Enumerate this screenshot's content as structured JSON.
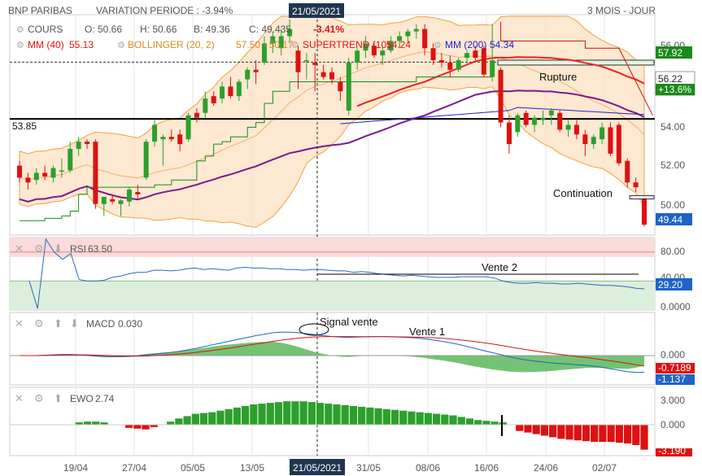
{
  "header": {
    "instrument": "BNP PARIBAS",
    "variation": "VARIATION PERIODE : -3.94%",
    "date": "21/05/2021",
    "period": "3 MOIS - JOUR"
  },
  "legend": {
    "cours_label": "COURS",
    "open": "O: 50.66",
    "high": "H: 50.66",
    "low": "B: 49.36",
    "close": "C: 49.435",
    "change": "-3.41%",
    "mm40": "MM (40)",
    "mm40_value": "55.13",
    "bollinger": "BOLLINGER (20, 2)",
    "bollinger_value": "57.50 - 50.17",
    "supertrend": "SUPERTREND (10)",
    "supertrend_value": "54.24",
    "mm200": "MM (200)",
    "mm200_value": "54.34"
  },
  "annotations": {
    "level": "53.85",
    "rupture": "Rupture",
    "continuation": "Continuation",
    "vente2": "Vente 2",
    "signal_vente": "Signal vente",
    "vente1": "Vente 1"
  },
  "price_badges": {
    "bb_upper": "57.92",
    "last_ref": "56.22",
    "last_pct": "+13.6%",
    "last": "49.44"
  },
  "price_ticks": [
    "56.00",
    "54.00",
    "52.00",
    "50.00"
  ],
  "rsi": {
    "label": "RSI",
    "value": "63.50",
    "ticks": [
      "80.00",
      "40.00",
      "0.0000"
    ],
    "badge": "29.20"
  },
  "macd": {
    "label": "MACD",
    "value": "0.030",
    "ticks": [
      "0.000"
    ],
    "badge1": "-0.7189",
    "badge2": "-1.137"
  },
  "ewo": {
    "label": "EWO",
    "value": "2.74",
    "ticks": [
      "3.000",
      "0.000"
    ],
    "badge": "-3.190"
  },
  "x_ticks": [
    "19/04",
    "27/04",
    "05/05",
    "13/05",
    "21/05/2021",
    "31/05",
    "08/06",
    "16/06",
    "24/06",
    "02/07"
  ],
  "colors": {
    "up": "#2ca02c",
    "down": "#dd1111",
    "bollinger": "#f4a23c",
    "mm40": "#ee2222",
    "mm200": "#2222cc",
    "supertrend": "#1a8a1a",
    "purple": "#7a1a8a"
  },
  "chart_data": [
    {
      "type": "candlestick",
      "title": "BNP PARIBAS",
      "ylim": [
        49.0,
        58.2
      ],
      "candles": [
        {
          "o": 51.9,
          "h": 52.1,
          "l": 51.2,
          "c": 51.4
        },
        {
          "o": 51.4,
          "h": 51.6,
          "l": 50.9,
          "c": 51.2
        },
        {
          "o": 51.3,
          "h": 51.8,
          "l": 51.1,
          "c": 51.6
        },
        {
          "o": 51.6,
          "h": 51.9,
          "l": 51.3,
          "c": 51.45
        },
        {
          "o": 51.4,
          "h": 51.9,
          "l": 51.2,
          "c": 51.8
        },
        {
          "o": 51.7,
          "h": 52.2,
          "l": 51.4,
          "c": 51.7
        },
        {
          "o": 51.7,
          "h": 52.9,
          "l": 51.6,
          "c": 52.6
        },
        {
          "o": 52.6,
          "h": 53.1,
          "l": 52.3,
          "c": 52.9
        },
        {
          "o": 52.9,
          "h": 53.0,
          "l": 52.6,
          "c": 52.8
        },
        {
          "o": 52.9,
          "h": 53.0,
          "l": 50.1,
          "c": 50.3
        },
        {
          "o": 50.3,
          "h": 50.6,
          "l": 49.8,
          "c": 50.6
        },
        {
          "o": 50.5,
          "h": 50.7,
          "l": 50.3,
          "c": 50.4
        },
        {
          "o": 50.3,
          "h": 50.5,
          "l": 49.8,
          "c": 50.45
        },
        {
          "o": 50.4,
          "h": 51.0,
          "l": 50.2,
          "c": 50.9
        },
        {
          "o": 50.8,
          "h": 51.1,
          "l": 50.5,
          "c": 50.7
        },
        {
          "o": 51.4,
          "h": 53.0,
          "l": 51.3,
          "c": 52.9
        },
        {
          "o": 52.9,
          "h": 53.8,
          "l": 52.7,
          "c": 53.6
        },
        {
          "o": 53.0,
          "h": 53.2,
          "l": 51.9,
          "c": 53.1
        },
        {
          "o": 53.1,
          "h": 53.4,
          "l": 52.9,
          "c": 53.0
        },
        {
          "o": 53.2,
          "h": 53.4,
          "l": 52.5,
          "c": 52.8
        },
        {
          "o": 53.0,
          "h": 54.1,
          "l": 52.9,
          "c": 54.0
        },
        {
          "o": 54.1,
          "h": 54.3,
          "l": 53.7,
          "c": 53.9
        },
        {
          "o": 54.1,
          "h": 55.0,
          "l": 53.9,
          "c": 54.7
        },
        {
          "o": 54.8,
          "h": 55.0,
          "l": 54.4,
          "c": 54.5
        },
        {
          "o": 54.7,
          "h": 55.4,
          "l": 54.5,
          "c": 55.2
        },
        {
          "o": 55.2,
          "h": 55.6,
          "l": 54.7,
          "c": 54.8
        },
        {
          "o": 54.8,
          "h": 55.5,
          "l": 54.6,
          "c": 55.4
        },
        {
          "o": 55.5,
          "h": 56.0,
          "l": 55.1,
          "c": 55.9
        },
        {
          "o": 55.9,
          "h": 56.3,
          "l": 55.3,
          "c": 55.8
        },
        {
          "o": 56.2,
          "h": 57.3,
          "l": 56.1,
          "c": 57.0
        },
        {
          "o": 57.0,
          "h": 57.5,
          "l": 56.6,
          "c": 57.3
        },
        {
          "o": 56.8,
          "h": 57.6,
          "l": 56.5,
          "c": 57.3
        },
        {
          "o": 57.3,
          "h": 58.0,
          "l": 57.0,
          "c": 57.6
        },
        {
          "o": 56.7,
          "h": 56.9,
          "l": 55.1,
          "c": 55.8
        },
        {
          "o": 56.3,
          "h": 56.6,
          "l": 55.5,
          "c": 56.3
        },
        {
          "o": 56.2,
          "h": 56.6,
          "l": 55.0,
          "c": 56.1
        },
        {
          "o": 55.8,
          "h": 56.1,
          "l": 55.5,
          "c": 55.6
        },
        {
          "o": 55.8,
          "h": 56.0,
          "l": 55.3,
          "c": 55.5
        },
        {
          "o": 55.4,
          "h": 55.6,
          "l": 54.6,
          "c": 55.0
        },
        {
          "o": 54.2,
          "h": 56.4,
          "l": 54.0,
          "c": 56.2
        },
        {
          "o": 56.2,
          "h": 56.8,
          "l": 55.9,
          "c": 56.7
        },
        {
          "o": 56.7,
          "h": 57.3,
          "l": 56.4,
          "c": 57.0
        },
        {
          "o": 56.9,
          "h": 57.1,
          "l": 56.4,
          "c": 56.5
        },
        {
          "o": 56.5,
          "h": 56.9,
          "l": 56.1,
          "c": 56.7
        },
        {
          "o": 56.7,
          "h": 57.3,
          "l": 56.6,
          "c": 57.1
        },
        {
          "o": 57.1,
          "h": 57.5,
          "l": 56.8,
          "c": 57.3
        },
        {
          "o": 57.3,
          "h": 57.6,
          "l": 57.0,
          "c": 57.5
        },
        {
          "o": 57.5,
          "h": 57.8,
          "l": 57.2,
          "c": 57.6
        },
        {
          "o": 57.6,
          "h": 57.8,
          "l": 56.5,
          "c": 56.8
        },
        {
          "o": 56.8,
          "h": 57.0,
          "l": 56.1,
          "c": 56.3
        },
        {
          "o": 56.3,
          "h": 56.6,
          "l": 56.0,
          "c": 56.2
        },
        {
          "o": 56.2,
          "h": 56.5,
          "l": 55.6,
          "c": 55.9
        },
        {
          "o": 55.9,
          "h": 56.4,
          "l": 55.8,
          "c": 56.3
        },
        {
          "o": 56.4,
          "h": 56.7,
          "l": 56.1,
          "c": 56.6
        },
        {
          "o": 56.7,
          "h": 56.9,
          "l": 56.3,
          "c": 56.4
        },
        {
          "o": 56.8,
          "h": 56.9,
          "l": 55.6,
          "c": 55.7
        },
        {
          "o": 55.6,
          "h": 57.8,
          "l": 55.4,
          "c": 56.3
        },
        {
          "o": 55.9,
          "h": 56.0,
          "l": 53.5,
          "c": 53.7
        },
        {
          "o": 53.7,
          "h": 54.0,
          "l": 52.4,
          "c": 52.8
        },
        {
          "o": 53.3,
          "h": 54.1,
          "l": 53.1,
          "c": 54.0
        },
        {
          "o": 54.1,
          "h": 54.2,
          "l": 53.5,
          "c": 53.6
        },
        {
          "o": 53.6,
          "h": 54.0,
          "l": 53.3,
          "c": 53.9
        },
        {
          "o": 53.8,
          "h": 54.2,
          "l": 53.6,
          "c": 53.9
        },
        {
          "o": 54.0,
          "h": 54.3,
          "l": 53.6,
          "c": 54.2
        },
        {
          "o": 54.1,
          "h": 54.2,
          "l": 53.3,
          "c": 53.4
        },
        {
          "o": 53.4,
          "h": 53.8,
          "l": 53.1,
          "c": 53.6
        },
        {
          "o": 53.6,
          "h": 53.8,
          "l": 53.0,
          "c": 53.2
        },
        {
          "o": 53.2,
          "h": 53.4,
          "l": 52.3,
          "c": 52.8
        },
        {
          "o": 52.8,
          "h": 53.2,
          "l": 52.6,
          "c": 53.1
        },
        {
          "o": 53.0,
          "h": 53.7,
          "l": 52.8,
          "c": 53.5
        },
        {
          "o": 53.5,
          "h": 53.7,
          "l": 52.3,
          "c": 52.4
        },
        {
          "o": 53.6,
          "h": 53.7,
          "l": 51.9,
          "c": 52.0
        },
        {
          "o": 52.1,
          "h": 52.2,
          "l": 51.0,
          "c": 51.2
        },
        {
          "o": 51.2,
          "h": 51.4,
          "l": 50.8,
          "c": 51.0
        },
        {
          "o": 50.66,
          "h": 50.66,
          "l": 49.36,
          "c": 49.435
        }
      ],
      "levels": [
        53.85,
        56.22,
        50.6
      ],
      "signal_date": "21/05/2021"
    },
    {
      "type": "line",
      "title": "RSI",
      "ylim": [
        0,
        100
      ],
      "values": [
        40,
        2,
        98,
        80,
        70,
        78,
        42,
        40,
        40,
        41,
        45,
        47,
        50,
        52,
        52,
        55,
        55,
        54,
        55,
        57,
        58,
        56,
        57,
        56,
        55,
        58,
        59,
        58,
        58,
        57,
        57,
        56,
        56,
        55,
        56,
        56,
        55,
        54,
        54,
        52,
        53,
        52,
        50,
        49,
        48,
        47,
        48,
        47,
        46,
        45,
        45,
        45,
        46,
        46,
        46,
        46,
        44,
        40,
        38,
        37,
        37,
        38,
        37,
        37,
        36,
        36,
        37,
        36,
        35,
        34,
        34,
        33,
        32,
        30,
        29.2
      ],
      "hlines": [
        80,
        40
      ]
    },
    {
      "type": "line",
      "title": "MACD",
      "series": [
        {
          "values": [
            0,
            0,
            0,
            0.02,
            0.05,
            0.08,
            0.08,
            0.06,
            0.03,
            -0.02,
            -0.06,
            -0.08,
            -0.08,
            -0.06,
            -0.02,
            0.04,
            0.1,
            0.16,
            0.22,
            0.3,
            0.4,
            0.5,
            0.62,
            0.75,
            0.88,
            1.0,
            1.12,
            1.24,
            1.36,
            1.46,
            1.56,
            1.6,
            1.6,
            1.56,
            1.5,
            1.42,
            1.36,
            1.3,
            1.26,
            1.24,
            1.26,
            1.28,
            1.3,
            1.3,
            1.28,
            1.26,
            1.24,
            1.2,
            1.14,
            1.06,
            0.98,
            0.88,
            0.76,
            0.62,
            0.48,
            0.34,
            0.2,
            0.06,
            -0.08,
            -0.2,
            -0.3,
            -0.38,
            -0.44,
            -0.5,
            -0.54,
            -0.58,
            -0.62,
            -0.66,
            -0.72,
            -0.8,
            -0.9,
            -1.0,
            -1.1,
            -1.15,
            -1.137
          ]
        },
        {
          "values": [
            0,
            0,
            0,
            0.01,
            0.02,
            0.04,
            0.05,
            0.05,
            0.05,
            0.03,
            0.01,
            -0.01,
            -0.03,
            -0.04,
            -0.04,
            -0.03,
            0,
            0.03,
            0.07,
            0.11,
            0.16,
            0.22,
            0.29,
            0.36,
            0.44,
            0.52,
            0.61,
            0.7,
            0.79,
            0.88,
            0.97,
            1.05,
            1.13,
            1.19,
            1.24,
            1.27,
            1.29,
            1.3,
            1.3,
            1.3,
            1.29,
            1.29,
            1.29,
            1.29,
            1.29,
            1.28,
            1.27,
            1.26,
            1.24,
            1.22,
            1.18,
            1.14,
            1.08,
            1.02,
            0.95,
            0.87,
            0.79,
            0.7,
            0.6,
            0.5,
            0.41,
            0.32,
            0.24,
            0.16,
            0.08,
            0.01,
            -0.06,
            -0.13,
            -0.2,
            -0.28,
            -0.36,
            -0.44,
            -0.53,
            -0.63,
            -0.7189
          ]
        }
      ]
    },
    {
      "type": "bar",
      "title": "EWO",
      "ylim": [
        -4.3,
        3.9
      ],
      "values": [
        0,
        0,
        0,
        0,
        0,
        0,
        0.3,
        0.4,
        0.4,
        0.3,
        0,
        0,
        -0.4,
        -0.5,
        -0.6,
        -0.3,
        0,
        0.4,
        0.8,
        1.1,
        1.4,
        1.5,
        1.6,
        1.8,
        2.0,
        2.2,
        2.4,
        2.6,
        2.7,
        2.8,
        2.9,
        3.0,
        3.0,
        3.0,
        2.9,
        2.8,
        2.7,
        2.6,
        2.5,
        2.4,
        2.3,
        2.2,
        2.1,
        2.0,
        1.9,
        1.8,
        1.7,
        1.6,
        1.5,
        1.4,
        1.3,
        1.2,
        1.0,
        0.8,
        0.6,
        0.5,
        0.4,
        0.3,
        0,
        -0.8,
        -1.0,
        -1.2,
        -1.4,
        -1.6,
        -1.8,
        -1.9,
        -2.0,
        -2.1,
        -2.2,
        -2.2,
        -2.2,
        -2.3,
        -2.4,
        -2.6,
        -3.19
      ]
    }
  ]
}
